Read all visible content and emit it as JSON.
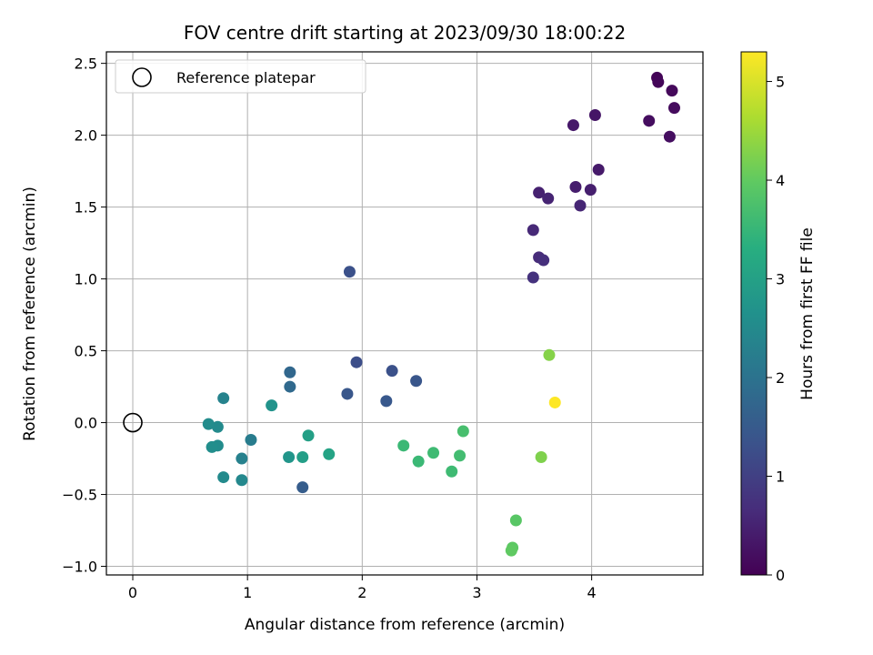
{
  "chart_data": {
    "type": "scatter",
    "title": "FOV centre drift starting at 2023/09/30 18:00:22",
    "xlabel": "Angular distance from reference (arcmin)",
    "ylabel": "Rotation from reference (arcmin)",
    "xlim": [
      -0.23,
      4.97
    ],
    "ylim": [
      -1.06,
      2.58
    ],
    "xticks": [
      0,
      1,
      2,
      3,
      4
    ],
    "yticks": [
      -1.0,
      -0.5,
      0.0,
      0.5,
      1.0,
      1.5,
      2.0,
      2.5
    ],
    "xtick_labels": [
      "0",
      "1",
      "2",
      "3",
      "4"
    ],
    "ytick_labels": [
      "−1.0",
      "−0.5",
      "0.0",
      "0.5",
      "1.0",
      "1.5",
      "2.0",
      "2.5"
    ],
    "grid": true,
    "legend": {
      "position": "upper-left",
      "entries": [
        "Reference platepar"
      ]
    },
    "reference_point": {
      "x": 0.0,
      "y": 0.0
    },
    "colorbar": {
      "label": "Hours from first FF file",
      "colormap": "viridis",
      "min": 0,
      "max": 5.3,
      "ticks": [
        0,
        1,
        2,
        3,
        4,
        5
      ],
      "tick_labels": [
        "0",
        "1",
        "2",
        "3",
        "4",
        "5"
      ]
    },
    "points": [
      {
        "x": 4.57,
        "y": 2.4,
        "c": 0.05
      },
      {
        "x": 4.58,
        "y": 2.37,
        "c": 0.08
      },
      {
        "x": 4.7,
        "y": 2.31,
        "c": 0.12
      },
      {
        "x": 4.72,
        "y": 2.19,
        "c": 0.15
      },
      {
        "x": 4.5,
        "y": 2.1,
        "c": 0.18
      },
      {
        "x": 4.68,
        "y": 1.99,
        "c": 0.2
      },
      {
        "x": 4.03,
        "y": 2.14,
        "c": 0.3
      },
      {
        "x": 3.84,
        "y": 2.07,
        "c": 0.35
      },
      {
        "x": 4.06,
        "y": 1.76,
        "c": 0.38
      },
      {
        "x": 3.86,
        "y": 1.64,
        "c": 0.42
      },
      {
        "x": 3.99,
        "y": 1.62,
        "c": 0.45
      },
      {
        "x": 3.54,
        "y": 1.6,
        "c": 0.48
      },
      {
        "x": 3.62,
        "y": 1.56,
        "c": 0.52
      },
      {
        "x": 3.9,
        "y": 1.51,
        "c": 0.55
      },
      {
        "x": 3.49,
        "y": 1.34,
        "c": 0.6
      },
      {
        "x": 3.54,
        "y": 1.15,
        "c": 0.65
      },
      {
        "x": 3.58,
        "y": 1.13,
        "c": 0.7
      },
      {
        "x": 3.49,
        "y": 1.01,
        "c": 0.75
      },
      {
        "x": 1.89,
        "y": 1.05,
        "c": 1.3
      },
      {
        "x": 1.95,
        "y": 0.42,
        "c": 1.25
      },
      {
        "x": 2.26,
        "y": 0.36,
        "c": 1.3
      },
      {
        "x": 2.47,
        "y": 0.29,
        "c": 1.4
      },
      {
        "x": 1.87,
        "y": 0.2,
        "c": 1.42
      },
      {
        "x": 2.21,
        "y": 0.15,
        "c": 1.45
      },
      {
        "x": 1.48,
        "y": -0.45,
        "c": 1.55
      },
      {
        "x": 1.37,
        "y": 0.35,
        "c": 1.75
      },
      {
        "x": 1.37,
        "y": 0.25,
        "c": 1.8
      },
      {
        "x": 0.79,
        "y": 0.17,
        "c": 2.35
      },
      {
        "x": 1.03,
        "y": -0.12,
        "c": 2.2
      },
      {
        "x": 0.95,
        "y": -0.25,
        "c": 2.3
      },
      {
        "x": 0.95,
        "y": -0.4,
        "c": 2.45
      },
      {
        "x": 0.79,
        "y": -0.38,
        "c": 2.5
      },
      {
        "x": 0.74,
        "y": -0.03,
        "c": 2.5
      },
      {
        "x": 0.66,
        "y": -0.01,
        "c": 2.55
      },
      {
        "x": 0.74,
        "y": -0.16,
        "c": 2.55
      },
      {
        "x": 0.69,
        "y": -0.17,
        "c": 2.58
      },
      {
        "x": 1.21,
        "y": 0.12,
        "c": 2.7
      },
      {
        "x": 1.36,
        "y": -0.24,
        "c": 2.75
      },
      {
        "x": 1.48,
        "y": -0.24,
        "c": 2.95
      },
      {
        "x": 1.53,
        "y": -0.09,
        "c": 2.98
      },
      {
        "x": 1.71,
        "y": -0.22,
        "c": 3.05
      },
      {
        "x": 2.36,
        "y": -0.16,
        "c": 3.55
      },
      {
        "x": 2.49,
        "y": -0.27,
        "c": 3.55
      },
      {
        "x": 2.62,
        "y": -0.21,
        "c": 3.6
      },
      {
        "x": 2.78,
        "y": -0.34,
        "c": 3.6
      },
      {
        "x": 2.85,
        "y": -0.23,
        "c": 3.65
      },
      {
        "x": 2.88,
        "y": -0.06,
        "c": 3.7
      },
      {
        "x": 3.34,
        "y": -0.68,
        "c": 3.9
      },
      {
        "x": 3.31,
        "y": -0.87,
        "c": 3.95
      },
      {
        "x": 3.3,
        "y": -0.89,
        "c": 3.98
      },
      {
        "x": 3.56,
        "y": -0.24,
        "c": 4.25
      },
      {
        "x": 3.63,
        "y": 0.47,
        "c": 4.3
      },
      {
        "x": 3.68,
        "y": 0.14,
        "c": 5.3
      }
    ]
  }
}
